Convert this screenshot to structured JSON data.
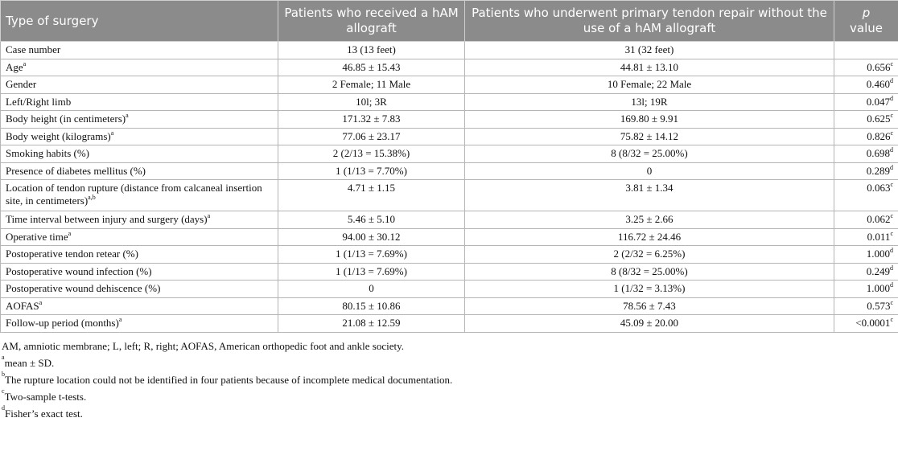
{
  "header": [
    "Type of surgery",
    "Patients who received a hAM allograft",
    "Patients who underwent primary tendon repair without the use of a hAM allograft",
    "value"
  ],
  "header_p": "p",
  "rows": [
    [
      "Case number",
      "",
      "13 (13 feet)",
      "31 (32 feet)",
      "",
      ""
    ],
    [
      "Age",
      "a",
      "46.85 ± 15.43",
      "44.81 ± 13.10",
      "0.656",
      "c"
    ],
    [
      "Gender",
      "",
      "2 Female; 11 Male",
      "10 Female; 22 Male",
      "0.460",
      "d"
    ],
    [
      "Left/Right limb",
      "",
      "10l; 3R",
      "13l; 19R",
      "0.047",
      "d"
    ],
    [
      "Body height (in centimeters)",
      "a",
      "171.32 ± 7.83",
      "169.80 ± 9.91",
      "0.625",
      "c"
    ],
    [
      "Body weight (kilograms)",
      "a",
      "77.06 ± 23.17",
      "75.82 ± 14.12",
      "0.826",
      "c"
    ],
    [
      "Smoking habits (%)",
      "",
      "2 (2/13 = 15.38%)",
      "8 (8/32 = 25.00%)",
      "0.698",
      "d"
    ],
    [
      "Presence of diabetes mellitus (%)",
      "",
      "1 (1/13 = 7.70%)",
      "0",
      "0.289",
      "d"
    ],
    [
      "Location of tendon rupture (distance from calcaneal insertion site, in centimeters)",
      "a,b",
      "4.71 ± 1.15",
      "3.81 ± 1.34",
      "0.063",
      "c"
    ],
    [
      "Time interval between injury and surgery (days)",
      "a",
      "5.46 ± 5.10",
      "3.25 ± 2.66",
      "0.062",
      "c"
    ],
    [
      "Operative time",
      "a",
      "94.00 ± 30.12",
      "116.72 ± 24.46",
      "0.011",
      "c"
    ],
    [
      "Postoperative tendon retear (%)",
      "",
      "1 (1/13 = 7.69%)",
      "2 (2/32 = 6.25%)",
      "1.000",
      "d"
    ],
    [
      "Postoperative wound infection (%)",
      "",
      "1 (1/13 = 7.69%)",
      "8 (8/32 = 25.00%)",
      "0.249",
      "d"
    ],
    [
      "Postoperative wound dehiscence (%)",
      "",
      "0",
      "1 (1/32 = 3.13%)",
      "1.000",
      "d"
    ],
    [
      "AOFAS",
      "a",
      "80.15 ± 10.86",
      "78.56 ± 7.43",
      "0.573",
      "c"
    ],
    [
      "Follow-up period (months)",
      "a",
      "21.08 ± 12.59",
      "45.09 ± 20.00",
      "<0.0001",
      "c"
    ]
  ],
  "notes": [
    [
      "",
      "AM, amniotic membrane; L, left; R, right; AOFAS, American orthopedic foot and ankle society."
    ],
    [
      "a",
      "mean ± SD."
    ],
    [
      "b",
      "The rupture location could not be identified in four patients because of incomplete medical documentation."
    ],
    [
      "c",
      "Two-sample t-tests."
    ],
    [
      "d",
      "Fisher’s exact test."
    ]
  ]
}
